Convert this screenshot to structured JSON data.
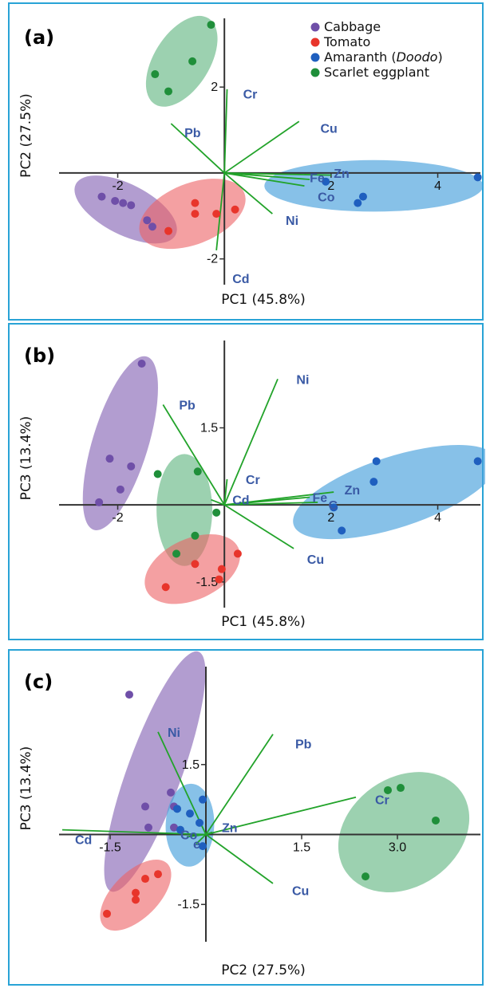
{
  "colors": {
    "cabbage": "#6f4fa8",
    "tomato": "#e8352b",
    "amaranth": "#1f5fbf",
    "scarlet": "#1f8f3a",
    "loading_line": "#22a32a",
    "loading_text": "#3a5aa5",
    "frame": "#29a3d6"
  },
  "legend": [
    {
      "key": "cabbage",
      "label": "Cabbage",
      "italic": ""
    },
    {
      "key": "tomato",
      "label": "Tomato",
      "italic": ""
    },
    {
      "key": "amaranth",
      "label": "Amaranth (",
      "italic": "Doodo",
      "suffix": ")"
    },
    {
      "key": "scarlet",
      "label": "Scarlet eggplant",
      "italic": ""
    }
  ],
  "chart_data": [
    {
      "type": "scatter",
      "panel_label": "(a)",
      "xlabel": "PC1 (45.8%)",
      "ylabel": "PC2 (27.5%)",
      "xlim": [
        -3.1,
        4.8
      ],
      "ylim": [
        -2.6,
        3.6
      ],
      "xticks": [
        {
          "v": -2,
          "t": "-2"
        },
        {
          "v": 2,
          "t": "2"
        },
        {
          "v": 4,
          "t": "4"
        }
      ],
      "yticks": [
        {
          "v": 2,
          "t": "2"
        },
        {
          "v": -2,
          "t": "-2"
        }
      ],
      "series": [
        {
          "key": "cabbage",
          "points": [
            [
              -2.3,
              -0.55
            ],
            [
              -2.05,
              -0.65
            ],
            [
              -1.9,
              -0.7
            ],
            [
              -1.75,
              -0.75
            ],
            [
              -1.45,
              -1.1
            ],
            [
              -1.35,
              -1.25
            ]
          ]
        },
        {
          "key": "tomato",
          "points": [
            [
              -1.05,
              -1.35
            ],
            [
              -0.55,
              -0.7
            ],
            [
              -0.55,
              -0.95
            ],
            [
              -0.15,
              -0.95
            ],
            [
              0.2,
              -0.85
            ]
          ]
        },
        {
          "key": "amaranth",
          "points": [
            [
              1.9,
              -0.2
            ],
            [
              2.5,
              -0.7
            ],
            [
              2.6,
              -0.55
            ],
            [
              4.75,
              -0.1
            ]
          ]
        },
        {
          "key": "scarlet",
          "points": [
            [
              -1.3,
              2.3
            ],
            [
              -1.05,
              1.9
            ],
            [
              -0.6,
              2.6
            ],
            [
              -0.25,
              3.45
            ]
          ]
        }
      ],
      "ellipses": [
        {
          "key": "cabbage",
          "cx": -1.85,
          "cy": -0.85,
          "rx": 1.05,
          "ry": 0.5,
          "angle": 27
        },
        {
          "key": "tomato",
          "cx": -0.6,
          "cy": -0.95,
          "rx": 1.05,
          "ry": 0.6,
          "angle": -22
        },
        {
          "key": "amaranth",
          "cx": 2.8,
          "cy": -0.3,
          "rx": 2.05,
          "ry": 0.6,
          "angle": 0
        },
        {
          "key": "scarlet",
          "cx": -0.8,
          "cy": 2.6,
          "rx": 0.95,
          "ry": 0.55,
          "angle": -58
        }
      ],
      "loadings": [
        {
          "name": "Cr",
          "x": 0.05,
          "y": 1.95,
          "lx": 0.35,
          "ly": 1.85
        },
        {
          "name": "Pb",
          "x": -1.0,
          "y": 1.15,
          "lx": -0.75,
          "ly": 0.95
        },
        {
          "name": "Cu",
          "x": 1.4,
          "y": 1.2,
          "lx": 1.8,
          "ly": 1.05
        },
        {
          "name": "Fe",
          "x": 1.6,
          "y": -0.15,
          "lx": 1.6,
          "ly": -0.1
        },
        {
          "name": "Zn",
          "x": 2.0,
          "y": -0.05,
          "lx": 2.05,
          "ly": 0.0
        },
        {
          "name": "Co",
          "x": 1.5,
          "y": -0.3,
          "lx": 1.75,
          "ly": -0.55
        },
        {
          "name": "Ni",
          "x": 0.9,
          "y": -0.95,
          "lx": 1.15,
          "ly": -1.1
        },
        {
          "name": "Cd",
          "x": -0.15,
          "y": -1.8,
          "lx": 0.15,
          "ly": -2.45
        }
      ]
    },
    {
      "type": "scatter",
      "panel_label": "(b)",
      "xlabel": "PC1 (45.8%)",
      "ylabel": "PC3 (13.4%)",
      "xlim": [
        -3.1,
        4.8
      ],
      "ylim": [
        -2.0,
        3.2
      ],
      "xticks": [
        {
          "v": -2,
          "t": "-2"
        },
        {
          "v": 2,
          "t": "2"
        },
        {
          "v": 4,
          "t": "4"
        }
      ],
      "yticks": [
        {
          "v": 1.5,
          "t": "1.5"
        },
        {
          "v": -1.5,
          "t": "-1.5"
        }
      ],
      "series": [
        {
          "key": "cabbage",
          "points": [
            [
              -2.35,
              0.05
            ],
            [
              -2.15,
              0.9
            ],
            [
              -1.95,
              0.3
            ],
            [
              -1.75,
              0.75
            ],
            [
              -1.55,
              2.75
            ]
          ]
        },
        {
          "key": "scarlet",
          "points": [
            [
              -1.25,
              0.6
            ],
            [
              -0.5,
              0.65
            ],
            [
              -0.15,
              -0.15
            ],
            [
              -0.9,
              -0.95
            ],
            [
              -0.55,
              -0.6
            ]
          ]
        },
        {
          "key": "tomato",
          "points": [
            [
              -1.1,
              -1.6
            ],
            [
              -0.55,
              -1.15
            ],
            [
              -0.05,
              -1.25
            ],
            [
              -0.1,
              -1.45
            ],
            [
              0.25,
              -0.95
            ]
          ]
        },
        {
          "key": "amaranth",
          "points": [
            [
              2.05,
              -0.05
            ],
            [
              2.2,
              -0.5
            ],
            [
              2.8,
              0.45
            ],
            [
              2.85,
              0.85
            ],
            [
              4.75,
              0.85
            ]
          ]
        }
      ],
      "ellipses": [
        {
          "key": "cabbage",
          "cx": -1.95,
          "cy": 1.2,
          "rx": 1.7,
          "ry": 0.55,
          "angle": -73
        },
        {
          "key": "scarlet",
          "cx": -0.75,
          "cy": -0.1,
          "rx": 1.05,
          "ry": 0.55,
          "angle": -90
        },
        {
          "key": "tomato",
          "cx": -0.6,
          "cy": -1.25,
          "rx": 0.95,
          "ry": 0.6,
          "angle": -25
        },
        {
          "key": "amaranth",
          "cx": 3.2,
          "cy": 0.25,
          "rx": 2.0,
          "ry": 0.7,
          "angle": -18
        }
      ],
      "loadings": [
        {
          "name": "Pb",
          "x": -1.15,
          "y": 1.95,
          "lx": -0.85,
          "ly": 1.95
        },
        {
          "name": "Ni",
          "x": 1.0,
          "y": 2.45,
          "lx": 1.35,
          "ly": 2.45
        },
        {
          "name": "Cr",
          "x": 0.05,
          "y": 0.5,
          "lx": 0.4,
          "ly": 0.5
        },
        {
          "name": "Cd",
          "x": -0.25,
          "y": 0.1,
          "lx": 0.15,
          "ly": 0.1
        },
        {
          "name": "Fe",
          "x": 1.6,
          "y": 0.15,
          "lx": 1.65,
          "ly": 0.15
        },
        {
          "name": "Zn",
          "x": 2.05,
          "y": 0.25,
          "lx": 2.25,
          "ly": 0.3
        },
        {
          "name": "C",
          "x": 1.75,
          "y": 0.05,
          "lx": 1.95,
          "ly": 0.0
        },
        {
          "name": "Cu",
          "x": 1.3,
          "y": -0.85,
          "lx": 1.55,
          "ly": -1.05
        }
      ]
    },
    {
      "type": "scatter",
      "panel_label": "(c)",
      "xlabel": "PC2 (27.5%)",
      "ylabel": "PC3 (13.4%)",
      "xlim": [
        -2.3,
        4.3
      ],
      "ylim": [
        -2.3,
        3.6
      ],
      "xticks": [
        {
          "v": -1.5,
          "t": "-1.5"
        },
        {
          "v": 1.5,
          "t": "1.5"
        },
        {
          "v": 3.0,
          "t": "3.0"
        }
      ],
      "yticks": [
        {
          "v": 1.5,
          "t": "1.5"
        },
        {
          "v": -1.5,
          "t": "-1.5"
        }
      ],
      "series": [
        {
          "key": "cabbage",
          "points": [
            [
              -1.2,
              3.0
            ],
            [
              -0.95,
              0.6
            ],
            [
              -0.9,
              0.15
            ],
            [
              -0.55,
              0.9
            ],
            [
              -0.5,
              0.6
            ],
            [
              -0.5,
              0.15
            ]
          ]
        },
        {
          "key": "amaranth",
          "points": [
            [
              -0.45,
              0.55
            ],
            [
              -0.4,
              0.1
            ],
            [
              -0.25,
              0.45
            ],
            [
              -0.1,
              0.25
            ],
            [
              -0.05,
              -0.25
            ],
            [
              -0.05,
              0.75
            ]
          ]
        },
        {
          "key": "tomato",
          "points": [
            [
              -1.55,
              -1.7
            ],
            [
              -1.1,
              -1.4
            ],
            [
              -1.1,
              -1.25
            ],
            [
              -0.95,
              -0.95
            ],
            [
              -0.75,
              -0.85
            ]
          ]
        },
        {
          "key": "scarlet",
          "points": [
            [
              2.5,
              -0.9
            ],
            [
              2.85,
              0.95
            ],
            [
              3.05,
              1.0
            ],
            [
              3.6,
              0.3
            ]
          ]
        }
      ],
      "ellipses": [
        {
          "key": "cabbage",
          "cx": -0.8,
          "cy": 1.35,
          "rx": 2.0,
          "ry": 0.45,
          "angle": -70
        },
        {
          "key": "amaranth",
          "cx": -0.25,
          "cy": 0.2,
          "rx": 0.65,
          "ry": 0.4,
          "angle": -88
        },
        {
          "key": "tomato",
          "cx": -1.1,
          "cy": -1.3,
          "rx": 0.7,
          "ry": 0.38,
          "angle": -45
        },
        {
          "key": "scarlet",
          "cx": 3.1,
          "cy": 0.05,
          "rx": 1.1,
          "ry": 0.9,
          "angle": -35
        }
      ],
      "loadings": [
        {
          "name": "Ni",
          "x": -0.75,
          "y": 2.2,
          "lx": -0.6,
          "ly": 2.2
        },
        {
          "name": "Pb",
          "x": 1.05,
          "y": 2.15,
          "lx": 1.4,
          "ly": 1.95
        },
        {
          "name": "Cr",
          "x": 2.35,
          "y": 0.8,
          "lx": 2.65,
          "ly": 0.75
        },
        {
          "name": "Cd",
          "x": -2.25,
          "y": 0.1,
          "lx": -2.05,
          "ly": -0.1
        },
        {
          "name": "Co",
          "x": -0.3,
          "y": -0.05,
          "lx": -0.4,
          "ly": 0.0
        },
        {
          "name": "Zn",
          "x": 0.1,
          "y": 0.05,
          "lx": 0.25,
          "ly": 0.15
        },
        {
          "name": "e",
          "x": -0.15,
          "y": -0.2,
          "lx": -0.2,
          "ly": -0.2
        },
        {
          "name": "Cu",
          "x": 1.05,
          "y": -1.05,
          "lx": 1.35,
          "ly": -1.2
        }
      ]
    }
  ]
}
